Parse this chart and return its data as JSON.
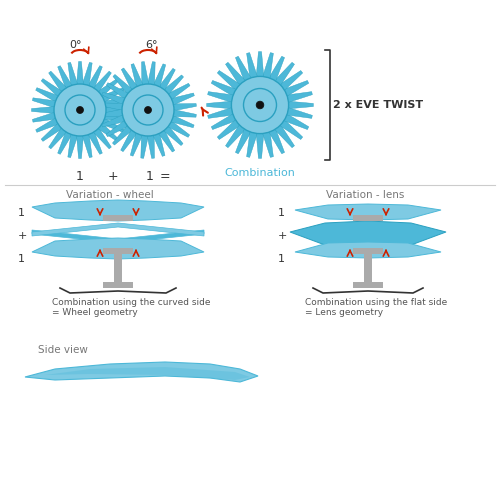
{
  "bg_color": "#ffffff",
  "blue_light": "#7ecae3",
  "blue_mid": "#4db8d8",
  "blue_dark": "#2aa0c0",
  "gray_stem": "#aaaaaa",
  "red_arrow": "#cc2200",
  "text_color": "#333333",
  "title_top": "2 x EVE TWIST",
  "label_combination": "Combination",
  "label_0deg": "0°",
  "label_6deg": "6°",
  "label_wheel": "Variation - wheel",
  "label_lens": "Variation - lens",
  "caption_wheel": "Combination using the curved side\n= Wheel geometry",
  "caption_lens": "Combination using the flat side\n= Lens geometry",
  "label_side_view": "Side view"
}
